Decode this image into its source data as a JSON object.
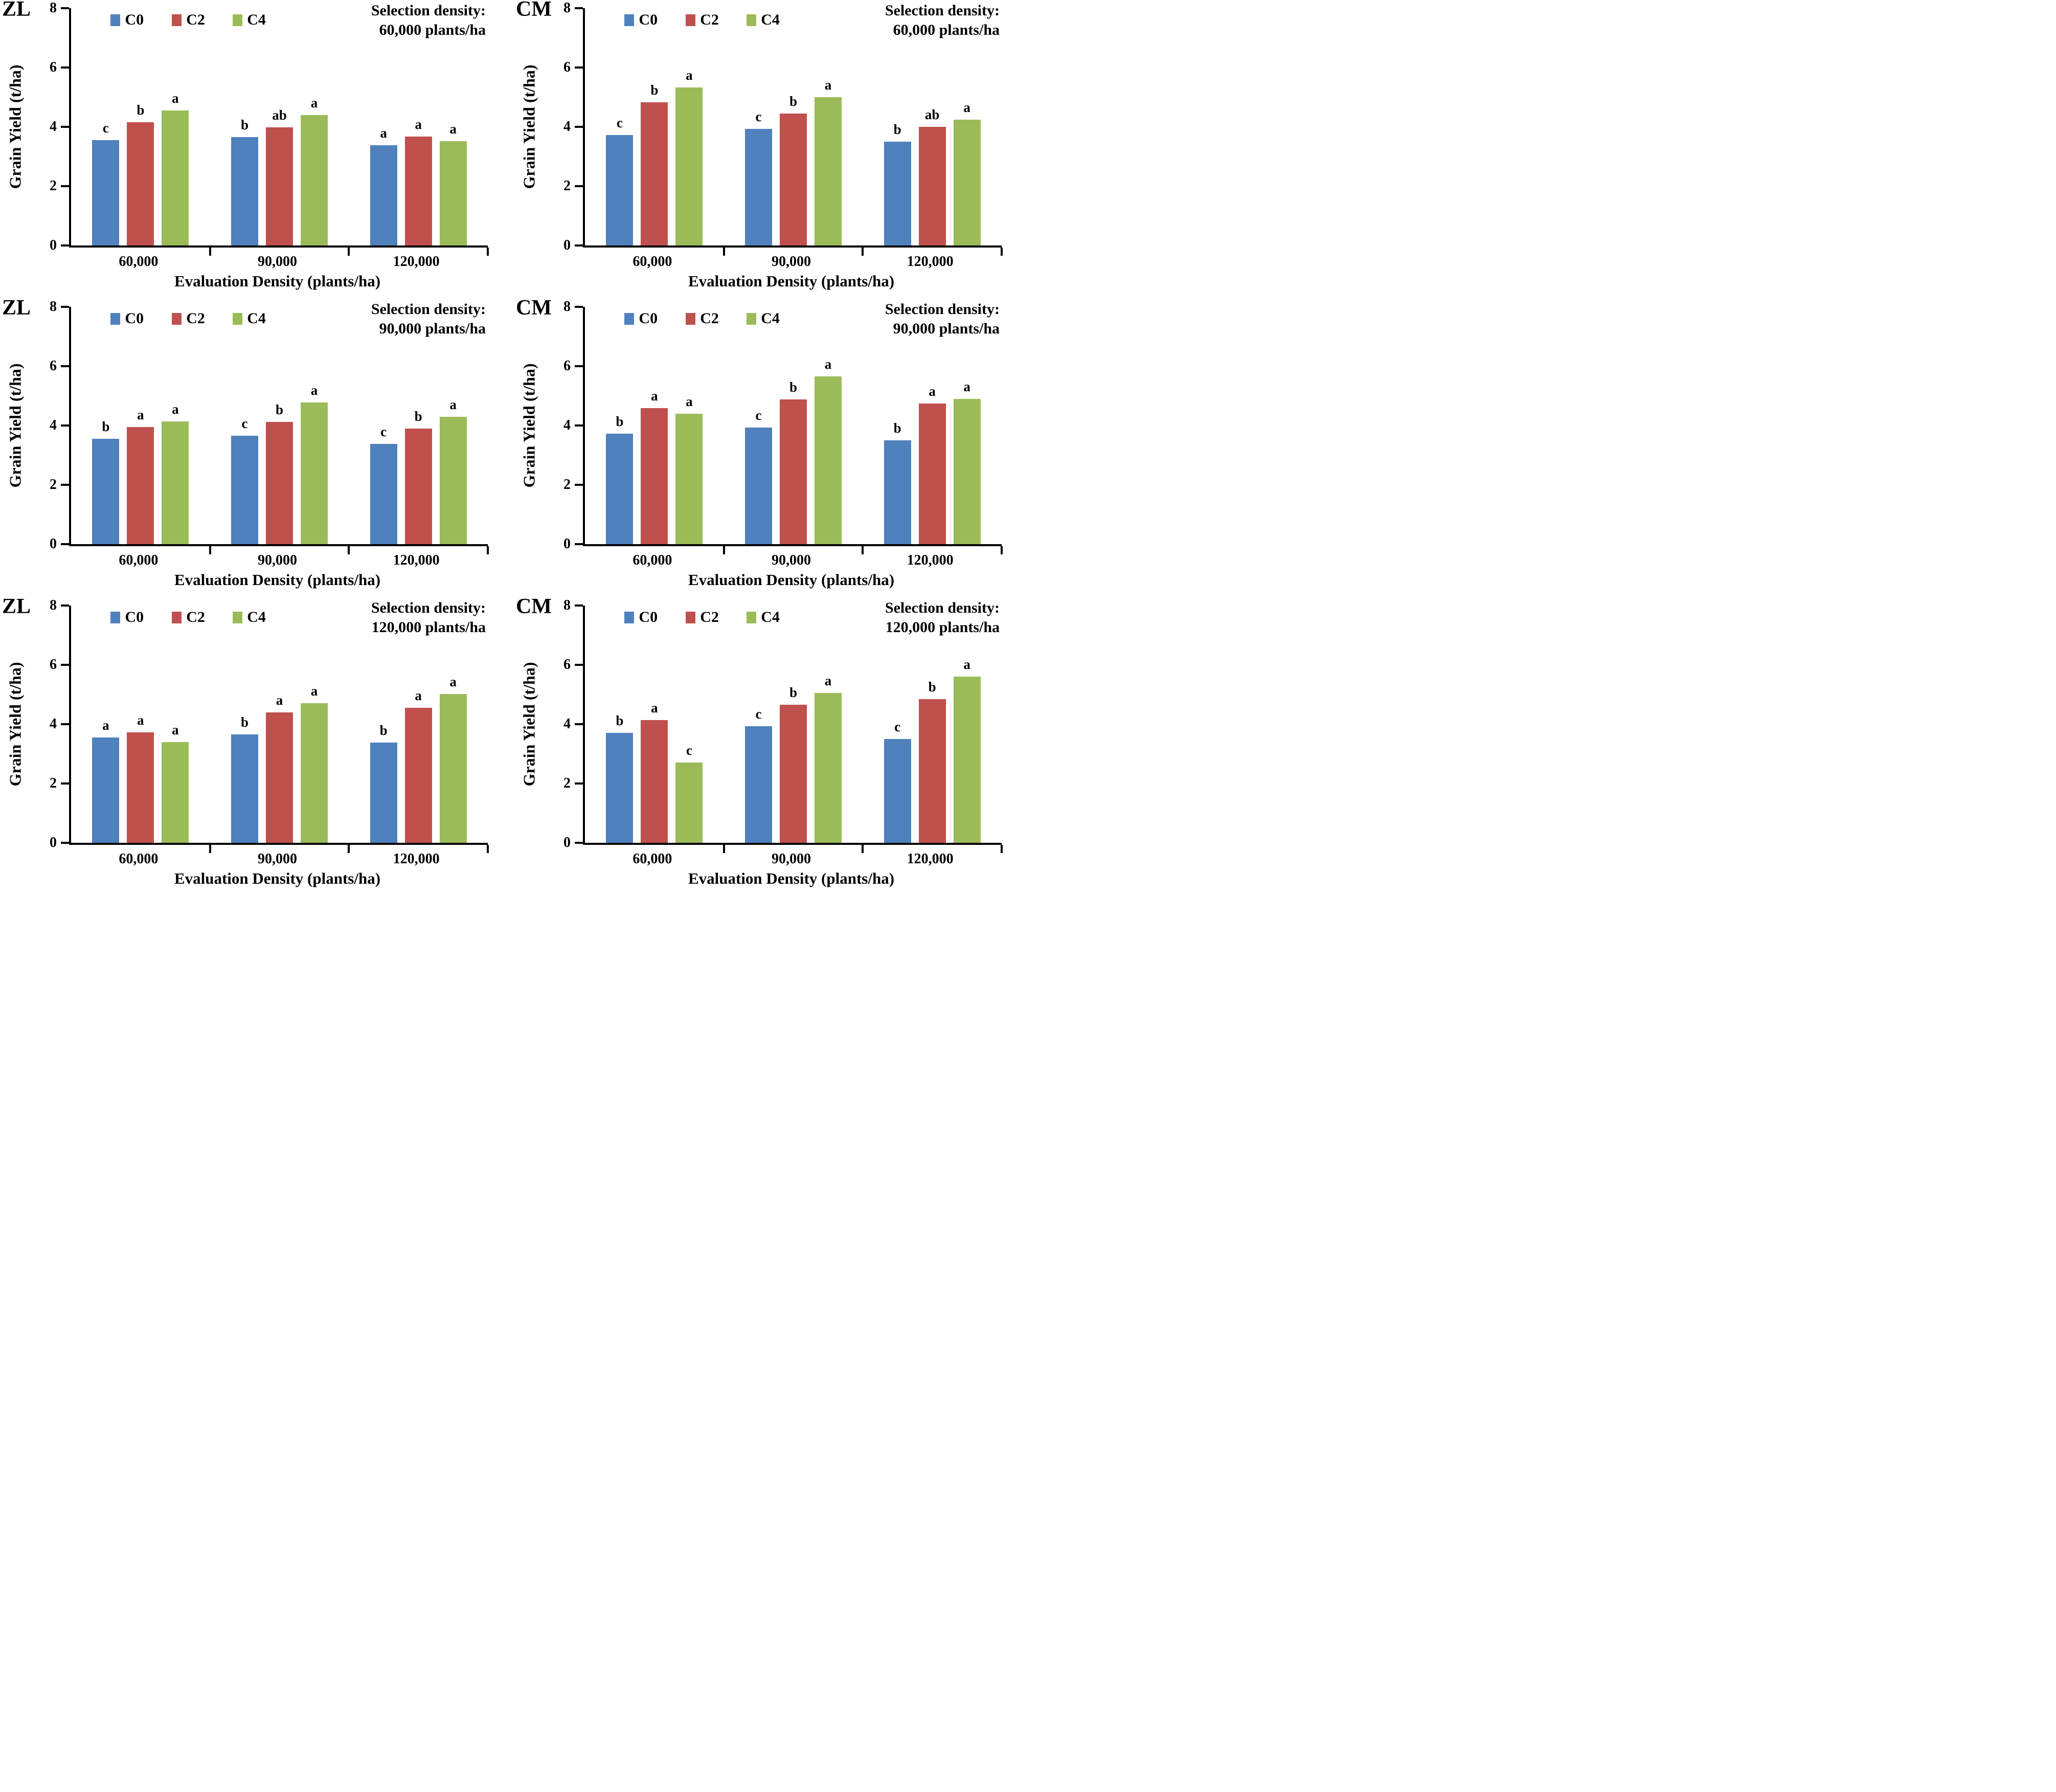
{
  "figure_type": "six-panel grouped bar figure",
  "colors": {
    "c0_blue": "#4F81BD",
    "c2_red": "#C0504D",
    "c4_green": "#9BBB59",
    "axis_black": "#000000"
  },
  "y_axis": {
    "label": "Grain Yield (t/ha)",
    "ticks": [
      0,
      2,
      4,
      6,
      8
    ],
    "max": 8
  },
  "x_axis": {
    "label": "Evaluation Density (plants/ha)",
    "categories": [
      "60,000",
      "90,000",
      "120,000"
    ]
  },
  "legend": {
    "entries": [
      "C0",
      "C2",
      "C4"
    ]
  },
  "chart_data": [
    {
      "type": "bar",
      "panel_label": "ZL",
      "title_line1": "Selection density:",
      "title_line2": "60,000 plants/ha",
      "categories": [
        "60,000",
        "90,000",
        "120,000"
      ],
      "ylim": [
        0,
        8
      ],
      "series": [
        {
          "name": "C0",
          "color": "#4F81BD",
          "values": [
            3.55,
            3.65,
            3.38
          ],
          "letters": [
            "c",
            "b",
            "a"
          ]
        },
        {
          "name": "C2",
          "color": "#C0504D",
          "values": [
            4.15,
            3.98,
            3.68
          ],
          "letters": [
            "b",
            "ab",
            "a"
          ]
        },
        {
          "name": "C4",
          "color": "#9BBB59",
          "values": [
            4.55,
            4.4,
            3.52
          ],
          "letters": [
            "a",
            "a",
            "a"
          ]
        }
      ]
    },
    {
      "type": "bar",
      "panel_label": "CM",
      "title_line1": "Selection density:",
      "title_line2": "60,000 plants/ha",
      "categories": [
        "60,000",
        "90,000",
        "120,000"
      ],
      "ylim": [
        0,
        8
      ],
      "series": [
        {
          "name": "C0",
          "color": "#4F81BD",
          "values": [
            3.72,
            3.93,
            3.5
          ],
          "letters": [
            "c",
            "c",
            "b"
          ]
        },
        {
          "name": "C2",
          "color": "#C0504D",
          "values": [
            4.83,
            4.45,
            4.0
          ],
          "letters": [
            "b",
            "b",
            "ab"
          ]
        },
        {
          "name": "C4",
          "color": "#9BBB59",
          "values": [
            5.32,
            5.0,
            4.25
          ],
          "letters": [
            "a",
            "a",
            "a"
          ]
        }
      ]
    },
    {
      "type": "bar",
      "panel_label": "ZL",
      "title_line1": "Selection density:",
      "title_line2": "90,000 plants/ha",
      "categories": [
        "60,000",
        "90,000",
        "120,000"
      ],
      "ylim": [
        0,
        8
      ],
      "series": [
        {
          "name": "C0",
          "color": "#4F81BD",
          "values": [
            3.55,
            3.65,
            3.38
          ],
          "letters": [
            "b",
            "c",
            "c"
          ]
        },
        {
          "name": "C2",
          "color": "#C0504D",
          "values": [
            3.95,
            4.12,
            3.9
          ],
          "letters": [
            "a",
            "b",
            "b"
          ]
        },
        {
          "name": "C4",
          "color": "#9BBB59",
          "values": [
            4.13,
            4.77,
            4.3
          ],
          "letters": [
            "a",
            "a",
            "a"
          ]
        }
      ]
    },
    {
      "type": "bar",
      "panel_label": "CM",
      "title_line1": "Selection density:",
      "title_line2": "90,000 plants/ha",
      "categories": [
        "60,000",
        "90,000",
        "120,000"
      ],
      "ylim": [
        0,
        8
      ],
      "series": [
        {
          "name": "C0",
          "color": "#4F81BD",
          "values": [
            3.72,
            3.93,
            3.5
          ],
          "letters": [
            "b",
            "c",
            "b"
          ]
        },
        {
          "name": "C2",
          "color": "#C0504D",
          "values": [
            4.58,
            4.88,
            4.75
          ],
          "letters": [
            "a",
            "b",
            "a"
          ]
        },
        {
          "name": "C4",
          "color": "#9BBB59",
          "values": [
            4.4,
            5.65,
            4.9
          ],
          "letters": [
            "a",
            "a",
            "a"
          ]
        }
      ]
    },
    {
      "type": "bar",
      "panel_label": "ZL",
      "title_line1": "Selection density:",
      "title_line2": "120,000 plants/ha",
      "categories": [
        "60,000",
        "90,000",
        "120,000"
      ],
      "ylim": [
        0,
        8
      ],
      "series": [
        {
          "name": "C0",
          "color": "#4F81BD",
          "values": [
            3.55,
            3.65,
            3.38
          ],
          "letters": [
            "a",
            "b",
            "b"
          ]
        },
        {
          "name": "C2",
          "color": "#C0504D",
          "values": [
            3.72,
            4.4,
            4.55
          ],
          "letters": [
            "a",
            "a",
            "a"
          ]
        },
        {
          "name": "C4",
          "color": "#9BBB59",
          "values": [
            3.4,
            4.7,
            5.02
          ],
          "letters": [
            "a",
            "a",
            "a"
          ]
        }
      ]
    },
    {
      "type": "bar",
      "panel_label": "CM",
      "title_line1": "Selection density:",
      "title_line2": "120,000 plants/ha",
      "categories": [
        "60,000",
        "90,000",
        "120,000"
      ],
      "ylim": [
        0,
        8
      ],
      "series": [
        {
          "name": "C0",
          "color": "#4F81BD",
          "values": [
            3.7,
            3.93,
            3.5
          ],
          "letters": [
            "b",
            "c",
            "c"
          ]
        },
        {
          "name": "C2",
          "color": "#C0504D",
          "values": [
            4.13,
            4.65,
            4.85
          ],
          "letters": [
            "a",
            "b",
            "b"
          ]
        },
        {
          "name": "C4",
          "color": "#9BBB59",
          "values": [
            2.7,
            5.05,
            5.6
          ],
          "letters": [
            "c",
            "a",
            "a"
          ]
        }
      ]
    }
  ]
}
